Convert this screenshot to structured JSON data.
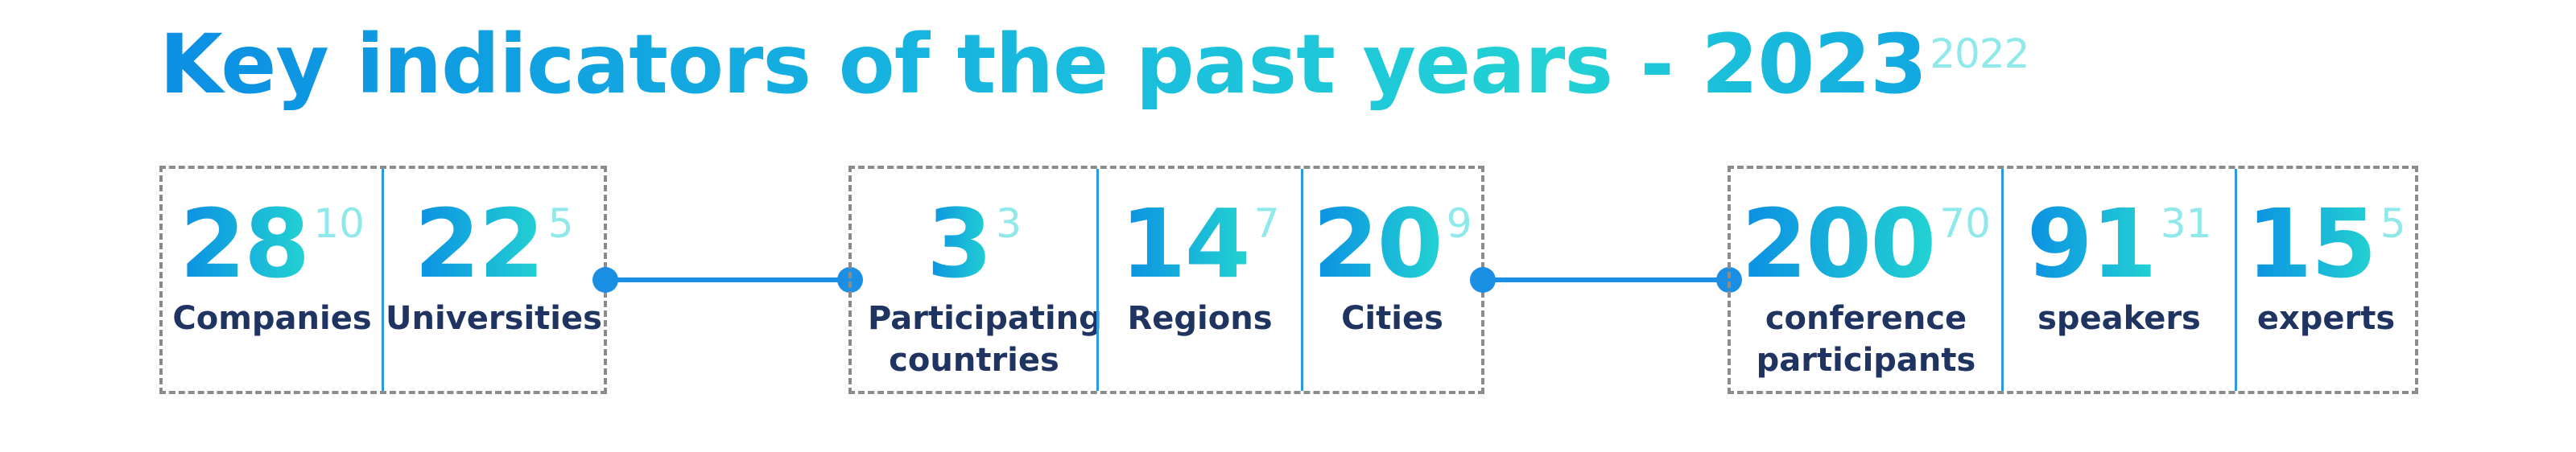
{
  "title": {
    "text": "Key indicators of the past years - 2023",
    "sup": "2022"
  },
  "colors": {
    "primary": "#0b8fe3",
    "accent": "#23d3d2",
    "superscript": "#8fe9ea",
    "label": "#1f3461",
    "border": "#8c8c8c"
  },
  "groups": [
    {
      "items": [
        {
          "value": "28",
          "sup": "10",
          "label": "Companies"
        },
        {
          "value": "22",
          "sup": "5",
          "label": "Universities"
        }
      ]
    },
    {
      "items": [
        {
          "value": "3",
          "sup": "3",
          "label": "Participating countries"
        },
        {
          "value": "14",
          "sup": "7",
          "label": "Regions"
        },
        {
          "value": "20",
          "sup": "9",
          "label": "Cities"
        }
      ]
    },
    {
      "items": [
        {
          "value": "200",
          "sup": "70",
          "label": "conference participants"
        },
        {
          "value": "91",
          "sup": "31",
          "label": "speakers"
        },
        {
          "value": "15",
          "sup": "5",
          "label": "experts"
        }
      ]
    }
  ]
}
